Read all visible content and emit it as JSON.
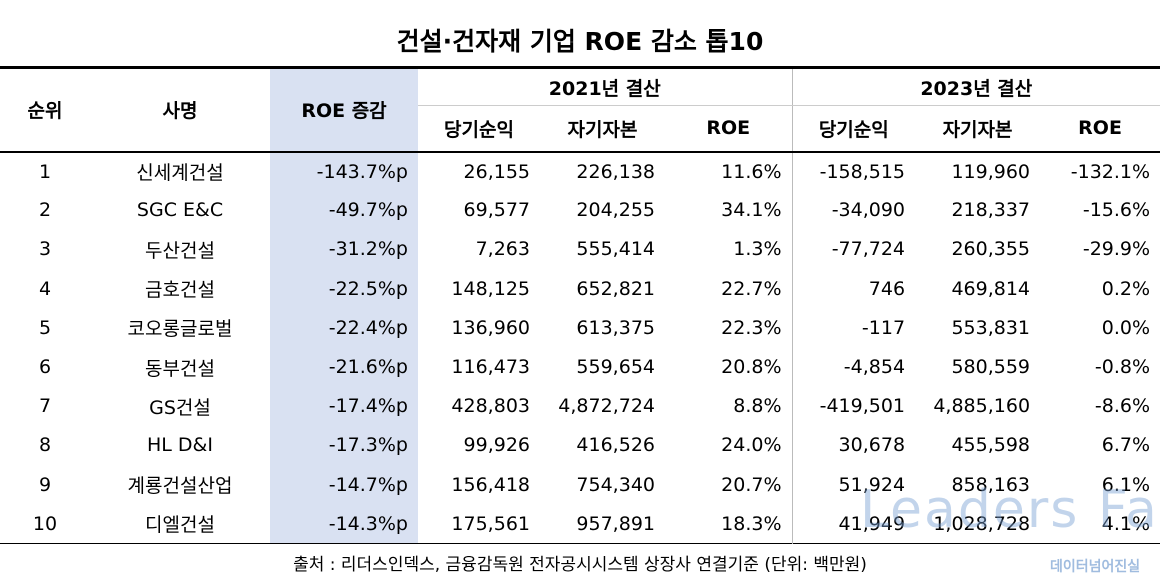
{
  "title": "건설·건자재 기업 ROE 감소 톱10",
  "table": {
    "header": {
      "rank": "순위",
      "company": "사명",
      "change": "ROE 증감",
      "groups": [
        "2021년 결산",
        "2023년 결산"
      ],
      "sub": [
        "당기순익",
        "자기자본",
        "ROE",
        "당기순익",
        "자기자본",
        "ROE"
      ]
    },
    "rows": [
      [
        "1",
        "신세계건설",
        "-143.7%p",
        "26,155",
        "226,138",
        "11.6%",
        "-158,515",
        "119,960",
        "-132.1%"
      ],
      [
        "2",
        "SGC E&C",
        "-49.7%p",
        "69,577",
        "204,255",
        "34.1%",
        "-34,090",
        "218,337",
        "-15.6%"
      ],
      [
        "3",
        "두산건설",
        "-31.2%p",
        "7,263",
        "555,414",
        "1.3%",
        "-77,724",
        "260,355",
        "-29.9%"
      ],
      [
        "4",
        "금호건설",
        "-22.5%p",
        "148,125",
        "652,821",
        "22.7%",
        "746",
        "469,814",
        "0.2%"
      ],
      [
        "5",
        "코오롱글로벌",
        "-22.4%p",
        "136,960",
        "613,375",
        "22.3%",
        "-117",
        "553,831",
        "0.0%"
      ],
      [
        "6",
        "동부건설",
        "-21.6%p",
        "116,473",
        "559,654",
        "20.8%",
        "-4,854",
        "580,559",
        "-0.8%"
      ],
      [
        "7",
        "GS건설",
        "-17.4%p",
        "428,803",
        "4,872,724",
        "8.8%",
        "-419,501",
        "4,885,160",
        "-8.6%"
      ],
      [
        "8",
        "HL D&I",
        "-17.3%p",
        "99,926",
        "416,526",
        "24.0%",
        "30,678",
        "455,598",
        "6.7%"
      ],
      [
        "9",
        "계룡건설산업",
        "-14.7%p",
        "156,418",
        "754,340",
        "20.7%",
        "51,924",
        "858,163",
        "6.1%"
      ],
      [
        "10",
        "디엘건설",
        "-14.3%p",
        "175,561",
        "957,891",
        "18.3%",
        "41,949",
        "1,028,728",
        "4.1%"
      ]
    ]
  },
  "source": "출처 : 리더스인덱스, 금융감독원 전자공시시스템 상장사 연결기준 (단위: 백만원)",
  "watermark": {
    "text": "Leaders Fact",
    "subtext": "데이터넘어진실"
  }
}
